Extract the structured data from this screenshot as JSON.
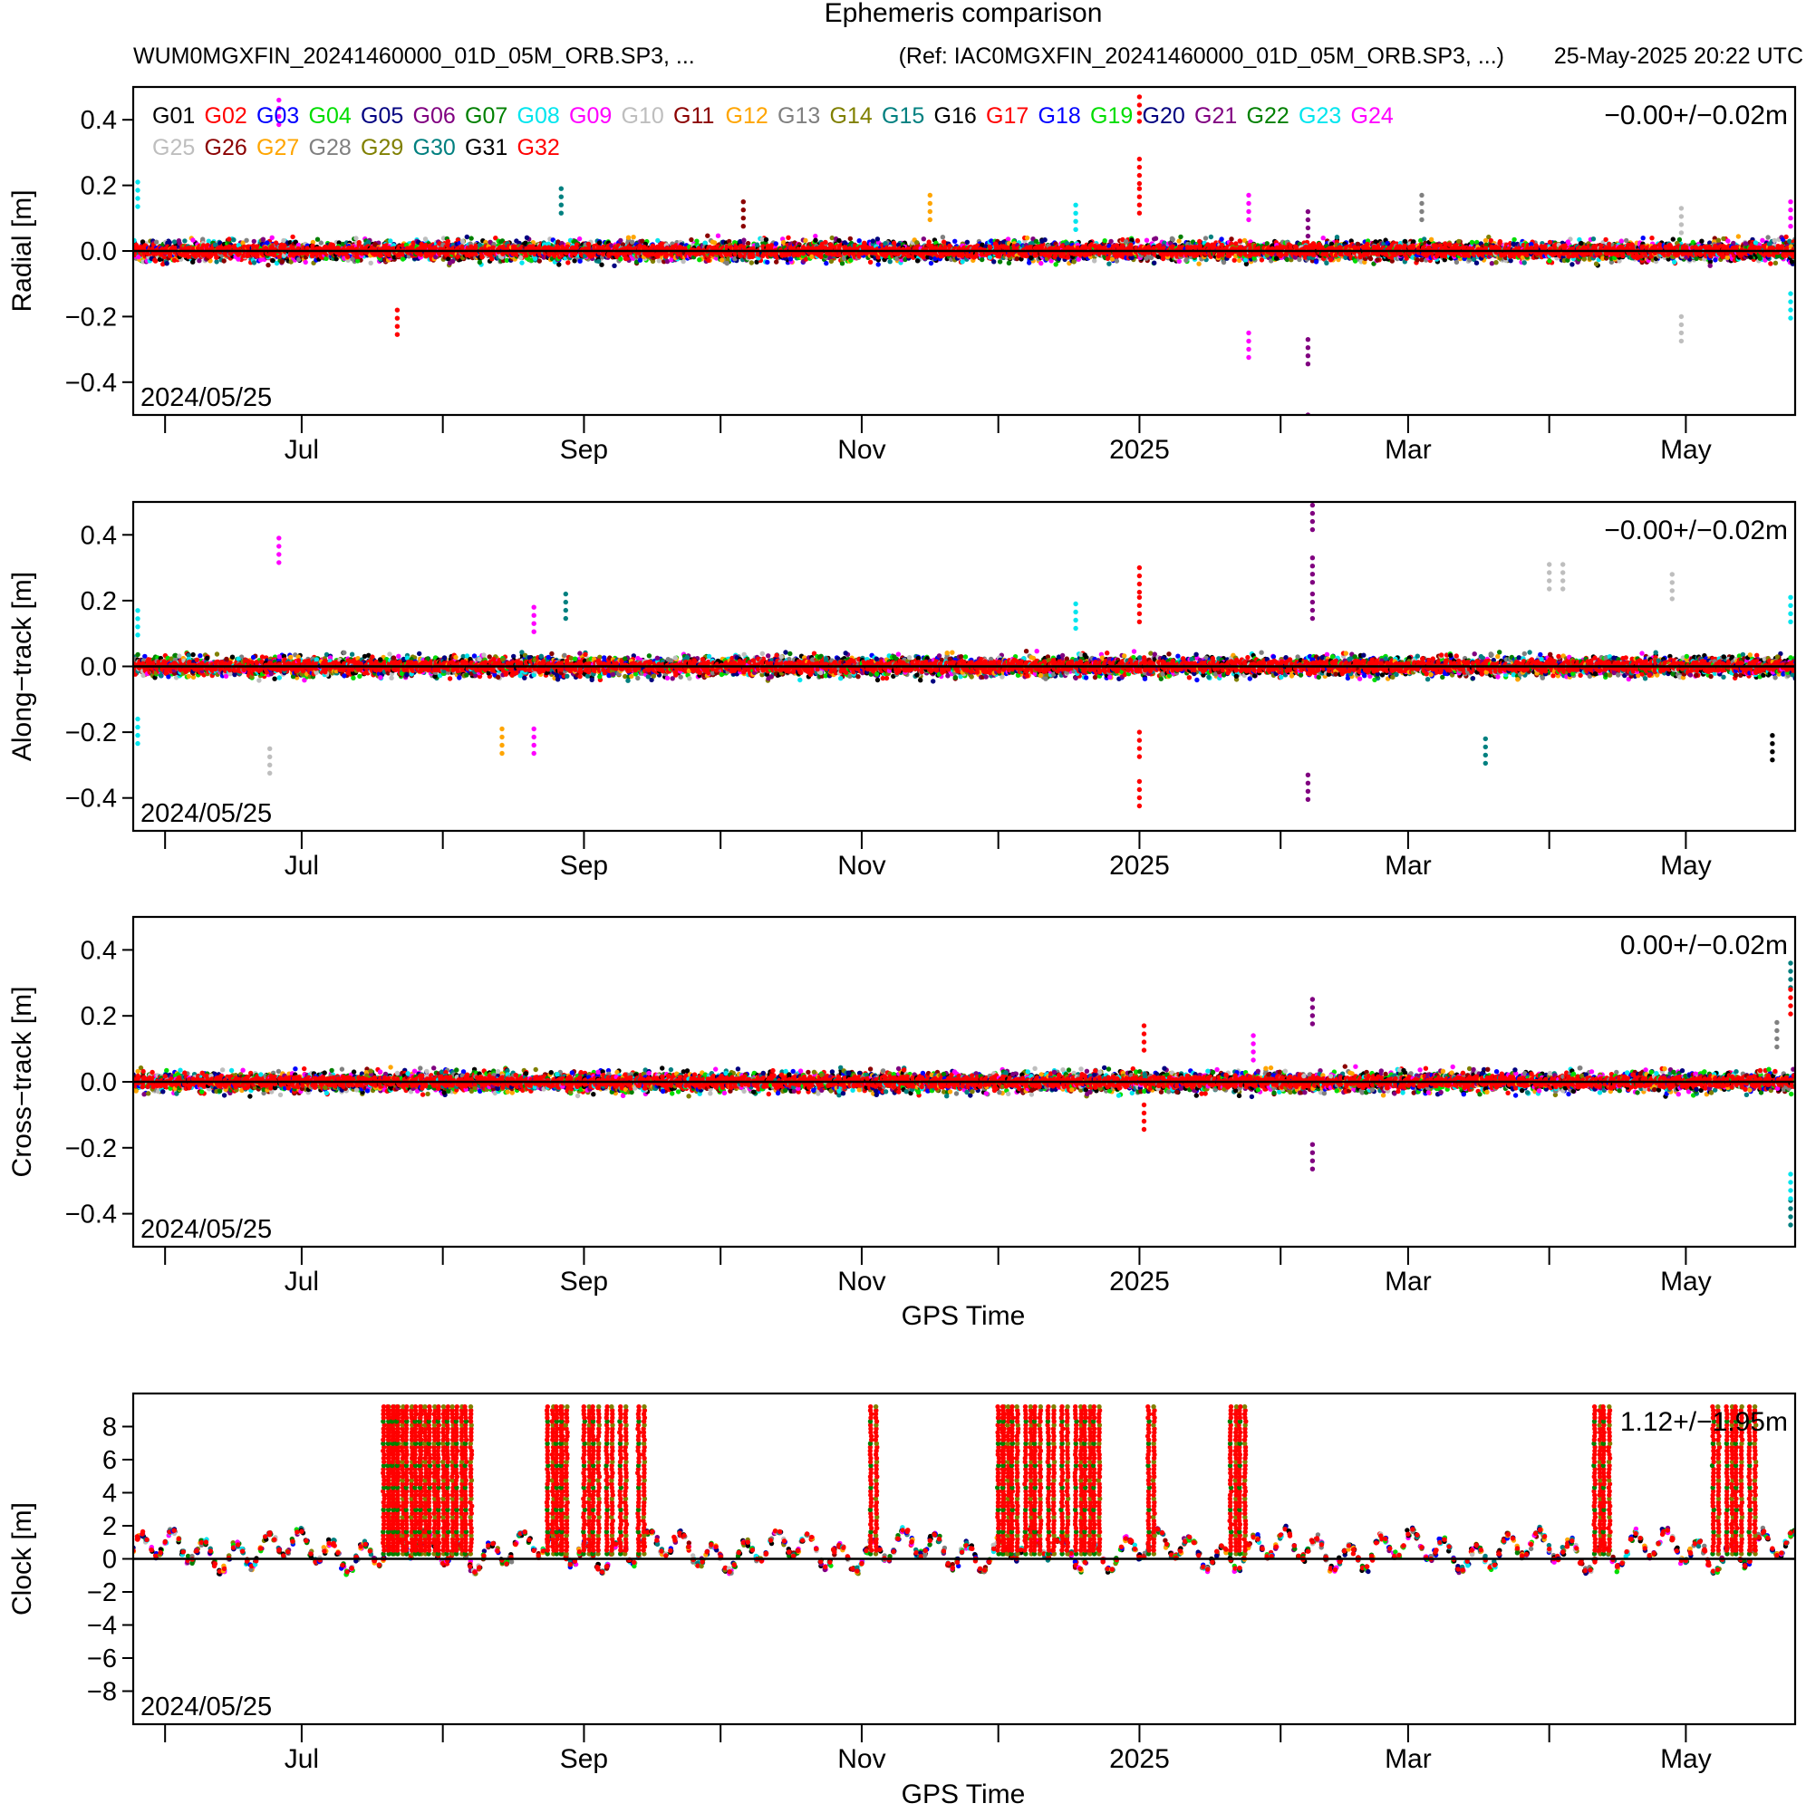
{
  "figure": {
    "title": "Ephemeris comparison",
    "file_label": "WUM0MGXFIN_20241460000_01D_05M_ORB.SP3, ...",
    "ref_label": "(Ref: IAC0MGXFIN_20241460000_01D_05M_ORB.SP3, ...)",
    "timestamp": "25-May-2025 20:22 UTC",
    "x_axis_title": "GPS Time"
  },
  "legend": {
    "placement": "top-left of Radial panel",
    "satellites": [
      {
        "id": "G01",
        "color": "#000000"
      },
      {
        "id": "G02",
        "color": "#ff0000"
      },
      {
        "id": "G03",
        "color": "#0000ff"
      },
      {
        "id": "G04",
        "color": "#00dd00"
      },
      {
        "id": "G05",
        "color": "#000080"
      },
      {
        "id": "G06",
        "color": "#800080"
      },
      {
        "id": "G07",
        "color": "#008000"
      },
      {
        "id": "G08",
        "color": "#00e5ee"
      },
      {
        "id": "G09",
        "color": "#ff00ff"
      },
      {
        "id": "G10",
        "color": "#bebebe"
      },
      {
        "id": "G11",
        "color": "#8b0000"
      },
      {
        "id": "G12",
        "color": "#ffa500"
      },
      {
        "id": "G13",
        "color": "#808080"
      },
      {
        "id": "G14",
        "color": "#808000"
      },
      {
        "id": "G15",
        "color": "#008080"
      },
      {
        "id": "G16",
        "color": "#000000"
      },
      {
        "id": "G17",
        "color": "#ff0000"
      },
      {
        "id": "G18",
        "color": "#0000ff"
      },
      {
        "id": "G19",
        "color": "#00dd00"
      },
      {
        "id": "G20",
        "color": "#000080"
      },
      {
        "id": "G21",
        "color": "#800080"
      },
      {
        "id": "G22",
        "color": "#008000"
      },
      {
        "id": "G23",
        "color": "#00e5ee"
      },
      {
        "id": "G24",
        "color": "#ff00ff"
      },
      {
        "id": "G25",
        "color": "#bebebe"
      },
      {
        "id": "G26",
        "color": "#8b0000"
      },
      {
        "id": "G27",
        "color": "#ffa500"
      },
      {
        "id": "G28",
        "color": "#808080"
      },
      {
        "id": "G29",
        "color": "#808000"
      },
      {
        "id": "G30",
        "color": "#008080"
      },
      {
        "id": "G31",
        "color": "#000000"
      },
      {
        "id": "G32",
        "color": "#ff0000"
      }
    ]
  },
  "chart_data": [
    {
      "type": "scatter",
      "ylabel": "Radial [m]",
      "stat": "−0.00+/−0.02m",
      "start_label": "2024/05/25",
      "xlim": [
        "2024-05-25",
        "2025-05-25"
      ],
      "ylim": [
        -0.5,
        0.5
      ],
      "yticks": [
        -0.4,
        -0.2,
        0.0,
        0.2,
        0.4
      ],
      "ytick_labels": [
        "−0.4",
        "−0.2",
        "0.0",
        "0.2",
        "0.4"
      ],
      "xtick_labels": [
        "Jul",
        "Sep",
        "Nov",
        "2025",
        "Mar",
        "May"
      ],
      "xticks": [
        "2024-07-01",
        "2024-09-01",
        "2024-11-01",
        "2025-01-01",
        "2025-03-01",
        "2025-05-01"
      ],
      "minor_xticks": [
        "2024-06-01",
        "2024-08-01",
        "2024-10-01",
        "2024-12-01",
        "2025-02-01",
        "2025-04-01"
      ],
      "band_halfwidth": 0.03,
      "outliers": [
        {
          "x": "2024-06-26",
          "y": 0.46,
          "sat": "G09"
        },
        {
          "x": "2024-05-26",
          "y": 0.21,
          "sat": "G08"
        },
        {
          "x": "2024-07-22",
          "y": -0.18,
          "sat": "G17"
        },
        {
          "x": "2024-08-27",
          "y": 0.19,
          "sat": "G15"
        },
        {
          "x": "2024-10-06",
          "y": 0.15,
          "sat": "G11"
        },
        {
          "x": "2024-11-16",
          "y": 0.17,
          "sat": "G12"
        },
        {
          "x": "2024-12-18",
          "y": 0.14,
          "sat": "G08"
        },
        {
          "x": "2025-01-01",
          "y": 0.47,
          "sat": "G02"
        },
        {
          "x": "2025-01-01",
          "y": 0.28,
          "sat": "G02"
        },
        {
          "x": "2025-01-01",
          "y": 0.19,
          "sat": "G02"
        },
        {
          "x": "2025-01-25",
          "y": 0.17,
          "sat": "G09"
        },
        {
          "x": "2025-01-25",
          "y": -0.25,
          "sat": "G09"
        },
        {
          "x": "2025-02-07",
          "y": 0.12,
          "sat": "G06"
        },
        {
          "x": "2025-02-07",
          "y": -0.27,
          "sat": "G06"
        },
        {
          "x": "2025-02-07",
          "y": -0.5,
          "sat": "G06"
        },
        {
          "x": "2025-03-04",
          "y": 0.17,
          "sat": "G13"
        },
        {
          "x": "2025-04-30",
          "y": 0.13,
          "sat": "G10"
        },
        {
          "x": "2025-04-30",
          "y": -0.2,
          "sat": "G10"
        },
        {
          "x": "2025-05-24",
          "y": 0.15,
          "sat": "G09"
        },
        {
          "x": "2025-05-24",
          "y": -0.13,
          "sat": "G08"
        }
      ]
    },
    {
      "type": "scatter",
      "ylabel": "Along−track [m]",
      "stat": "−0.00+/−0.02m",
      "start_label": "2024/05/25",
      "xlim": [
        "2024-05-25",
        "2025-05-25"
      ],
      "ylim": [
        -0.5,
        0.5
      ],
      "yticks": [
        -0.4,
        -0.2,
        0.0,
        0.2,
        0.4
      ],
      "ytick_labels": [
        "−0.4",
        "−0.2",
        "0.0",
        "0.2",
        "0.4"
      ],
      "xtick_labels": [
        "Jul",
        "Sep",
        "Nov",
        "2025",
        "Mar",
        "May"
      ],
      "xticks": [
        "2024-07-01",
        "2024-09-01",
        "2024-11-01",
        "2025-01-01",
        "2025-03-01",
        "2025-05-01"
      ],
      "minor_xticks": [
        "2024-06-01",
        "2024-08-01",
        "2024-10-01",
        "2024-12-01",
        "2025-02-01",
        "2025-04-01"
      ],
      "band_halfwidth": 0.03,
      "outliers": [
        {
          "x": "2024-06-26",
          "y": 0.39,
          "sat": "G09"
        },
        {
          "x": "2024-05-26",
          "y": 0.17,
          "sat": "G08"
        },
        {
          "x": "2024-05-26",
          "y": -0.16,
          "sat": "G08"
        },
        {
          "x": "2024-06-24",
          "y": -0.25,
          "sat": "G10"
        },
        {
          "x": "2024-08-14",
          "y": -0.19,
          "sat": "G12"
        },
        {
          "x": "2024-08-21",
          "y": 0.18,
          "sat": "G09"
        },
        {
          "x": "2024-08-21",
          "y": -0.19,
          "sat": "G09"
        },
        {
          "x": "2024-08-28",
          "y": 0.22,
          "sat": "G15"
        },
        {
          "x": "2024-12-18",
          "y": 0.19,
          "sat": "G08"
        },
        {
          "x": "2025-01-01",
          "y": 0.3,
          "sat": "G02"
        },
        {
          "x": "2025-01-01",
          "y": 0.21,
          "sat": "G02"
        },
        {
          "x": "2025-01-01",
          "y": -0.35,
          "sat": "G02"
        },
        {
          "x": "2025-01-01",
          "y": -0.2,
          "sat": "G02"
        },
        {
          "x": "2025-02-08",
          "y": 0.49,
          "sat": "G06"
        },
        {
          "x": "2025-02-08",
          "y": 0.33,
          "sat": "G06"
        },
        {
          "x": "2025-02-08",
          "y": 0.22,
          "sat": "G06"
        },
        {
          "x": "2025-02-07",
          "y": -0.33,
          "sat": "G06"
        },
        {
          "x": "2025-03-18",
          "y": -0.22,
          "sat": "G15"
        },
        {
          "x": "2025-04-01",
          "y": 0.31,
          "sat": "G10"
        },
        {
          "x": "2025-04-04",
          "y": 0.31,
          "sat": "G10"
        },
        {
          "x": "2025-04-28",
          "y": 0.28,
          "sat": "G10"
        },
        {
          "x": "2025-05-20",
          "y": -0.21,
          "sat": "G01"
        },
        {
          "x": "2025-05-24",
          "y": 0.21,
          "sat": "G08"
        }
      ]
    },
    {
      "type": "scatter",
      "ylabel": "Cross−track [m]",
      "stat": "0.00+/−0.02m",
      "start_label": "2024/05/25",
      "xlim": [
        "2024-05-25",
        "2025-05-25"
      ],
      "ylim": [
        -0.5,
        0.5
      ],
      "yticks": [
        -0.4,
        -0.2,
        0.0,
        0.2,
        0.4
      ],
      "ytick_labels": [
        "−0.4",
        "−0.2",
        "0.0",
        "0.2",
        "0.4"
      ],
      "xtick_labels": [
        "Jul",
        "Sep",
        "Nov",
        "2025",
        "Mar",
        "May"
      ],
      "xticks": [
        "2024-07-01",
        "2024-09-01",
        "2024-11-01",
        "2025-01-01",
        "2025-03-01",
        "2025-05-01"
      ],
      "minor_xticks": [
        "2024-06-01",
        "2024-08-01",
        "2024-10-01",
        "2024-12-01",
        "2025-02-01",
        "2025-04-01"
      ],
      "band_halfwidth": 0.03,
      "outliers": [
        {
          "x": "2025-01-02",
          "y": 0.17,
          "sat": "G02"
        },
        {
          "x": "2025-01-02",
          "y": -0.07,
          "sat": "G02"
        },
        {
          "x": "2025-01-26",
          "y": 0.14,
          "sat": "G09"
        },
        {
          "x": "2025-02-08",
          "y": 0.25,
          "sat": "G06"
        },
        {
          "x": "2025-02-08",
          "y": -0.19,
          "sat": "G06"
        },
        {
          "x": "2025-05-21",
          "y": 0.18,
          "sat": "G13"
        },
        {
          "x": "2025-05-24",
          "y": 0.36,
          "sat": "G15"
        },
        {
          "x": "2025-05-24",
          "y": -0.36,
          "sat": "G15"
        },
        {
          "x": "2025-05-24",
          "y": -0.28,
          "sat": "G08"
        },
        {
          "x": "2025-05-24",
          "y": 0.28,
          "sat": "G02"
        }
      ]
    },
    {
      "type": "scatter",
      "ylabel": "Clock [m]",
      "stat": "1.12+/−1.95m",
      "start_label": "2024/05/25",
      "xlim": [
        "2024-05-25",
        "2025-05-25"
      ],
      "ylim": [
        -10,
        10
      ],
      "yticks": [
        -8,
        -6,
        -4,
        -2,
        0,
        2,
        4,
        6,
        8
      ],
      "ytick_labels": [
        "−8",
        "−6",
        "−4",
        "−2",
        "0",
        "2",
        "4",
        "6",
        "8"
      ],
      "xtick_labels": [
        "Jul",
        "Sep",
        "Nov",
        "2025",
        "Mar",
        "May"
      ],
      "xticks": [
        "2024-07-01",
        "2024-09-01",
        "2024-11-01",
        "2025-01-01",
        "2025-03-01",
        "2025-05-01"
      ],
      "minor_xticks": [
        "2024-06-01",
        "2024-08-01",
        "2024-10-01",
        "2024-12-01",
        "2025-02-01",
        "2025-04-01"
      ],
      "baseline_range": [
        -1.5,
        2.5
      ],
      "jump_height": 9.2,
      "jump_days": [
        "2024-07-19",
        "2024-07-20",
        "2024-07-21",
        "2024-07-22",
        "2024-07-24",
        "2024-07-26",
        "2024-07-27",
        "2024-07-29",
        "2024-07-31",
        "2024-08-02",
        "2024-08-04",
        "2024-08-06",
        "2024-08-24",
        "2024-08-26",
        "2024-08-27",
        "2024-09-01",
        "2024-09-03",
        "2024-09-06",
        "2024-09-09",
        "2024-09-13",
        "2024-11-03",
        "2024-12-01",
        "2024-12-02",
        "2024-12-04",
        "2024-12-07",
        "2024-12-09",
        "2024-12-12",
        "2024-12-15",
        "2024-12-18",
        "2024-12-20",
        "2024-12-22",
        "2025-01-03",
        "2025-01-21",
        "2025-01-23",
        "2025-04-11",
        "2025-04-13",
        "2025-05-07",
        "2025-05-10",
        "2025-05-12",
        "2025-05-15"
      ]
    }
  ]
}
